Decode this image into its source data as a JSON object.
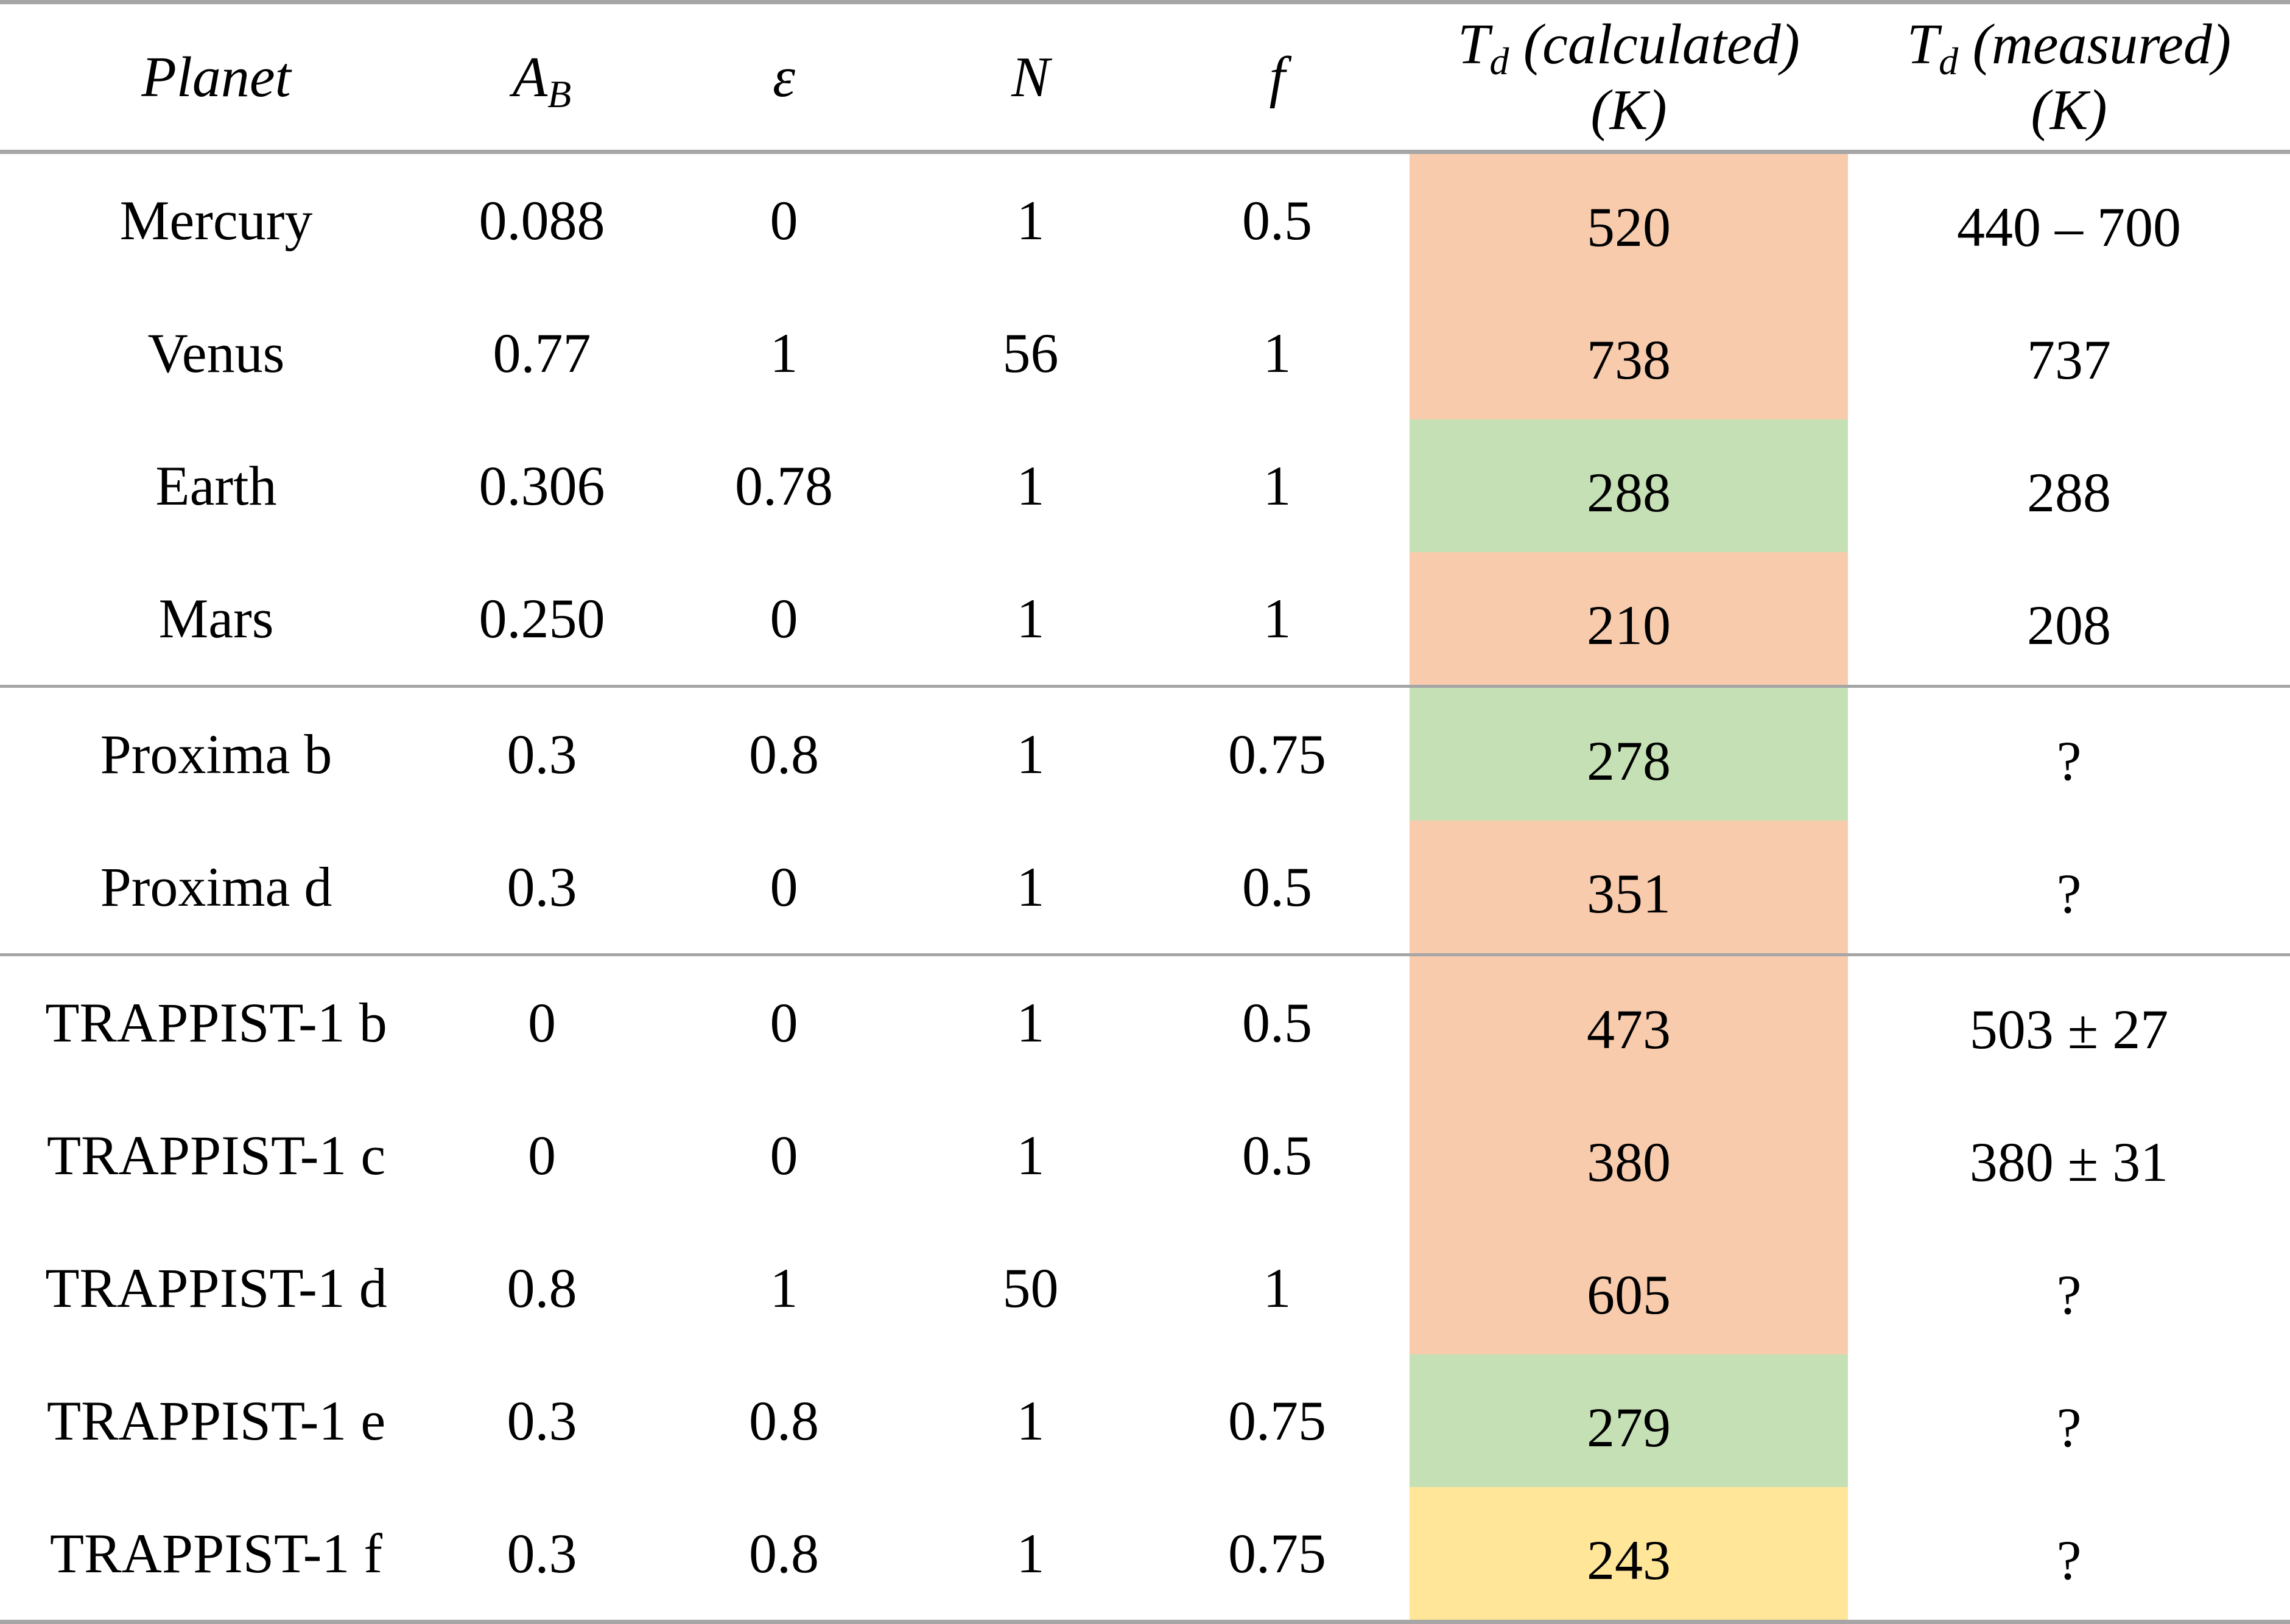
{
  "table": {
    "headers": {
      "planet": "Planet",
      "albedo": {
        "symbol": "A",
        "subscript": "B"
      },
      "emissivity": "ε",
      "layers": "N",
      "f": "f",
      "t_calc": {
        "symbol": "T",
        "subscript": "d",
        "qualifier": "(calculated)",
        "unit": "(K)"
      },
      "t_meas": {
        "symbol": "T",
        "subscript": "d",
        "qualifier": "(measured)",
        "unit": "(K)"
      }
    },
    "rows": [
      {
        "planet": "Mercury",
        "ab": "0.088",
        "eps": "0",
        "n": "1",
        "f": "0.5",
        "tcalc": "520",
        "tmeas": "440 – 700",
        "status": "warm"
      },
      {
        "planet": "Venus",
        "ab": "0.77",
        "eps": "1",
        "n": "56",
        "f": "1",
        "tcalc": "738",
        "tmeas": "737",
        "status": "warm"
      },
      {
        "planet": "Earth",
        "ab": "0.306",
        "eps": "0.78",
        "n": "1",
        "f": "1",
        "tcalc": "288",
        "tmeas": "288",
        "status": "habitable"
      },
      {
        "planet": "Mars",
        "ab": "0.250",
        "eps": "0",
        "n": "1",
        "f": "1",
        "tcalc": "210",
        "tmeas": "208",
        "status": "warm"
      },
      {
        "planet": "Proxima b",
        "ab": "0.3",
        "eps": "0.8",
        "n": "1",
        "f": "0.75",
        "tcalc": "278",
        "tmeas": "?",
        "status": "habitable"
      },
      {
        "planet": "Proxima d",
        "ab": "0.3",
        "eps": "0",
        "n": "1",
        "f": "0.5",
        "tcalc": "351",
        "tmeas": "?",
        "status": "warm"
      },
      {
        "planet": "TRAPPIST-1 b",
        "ab": "0",
        "eps": "0",
        "n": "1",
        "f": "0.5",
        "tcalc": "473",
        "tmeas": "503 ± 27",
        "status": "warm"
      },
      {
        "planet": "TRAPPIST-1 c",
        "ab": "0",
        "eps": "0",
        "n": "1",
        "f": "0.5",
        "tcalc": "380",
        "tmeas": "380 ± 31",
        "status": "warm"
      },
      {
        "planet": "TRAPPIST-1 d",
        "ab": "0.8",
        "eps": "1",
        "n": "50",
        "f": "1",
        "tcalc": "605",
        "tmeas": "?",
        "status": "warm"
      },
      {
        "planet": "TRAPPIST-1 e",
        "ab": "0.3",
        "eps": "0.8",
        "n": "1",
        "f": "0.75",
        "tcalc": "279",
        "tmeas": "?",
        "status": "habitable"
      },
      {
        "planet": "TRAPPIST-1 f",
        "ab": "0.3",
        "eps": "0.8",
        "n": "1",
        "f": "0.75",
        "tcalc": "243",
        "tmeas": "?",
        "status": "cool"
      }
    ]
  },
  "colors": {
    "warm": "#f8cbad",
    "habitable": "#c5e0b4",
    "cool": "#ffe699",
    "rule": "#a6a6a6"
  }
}
